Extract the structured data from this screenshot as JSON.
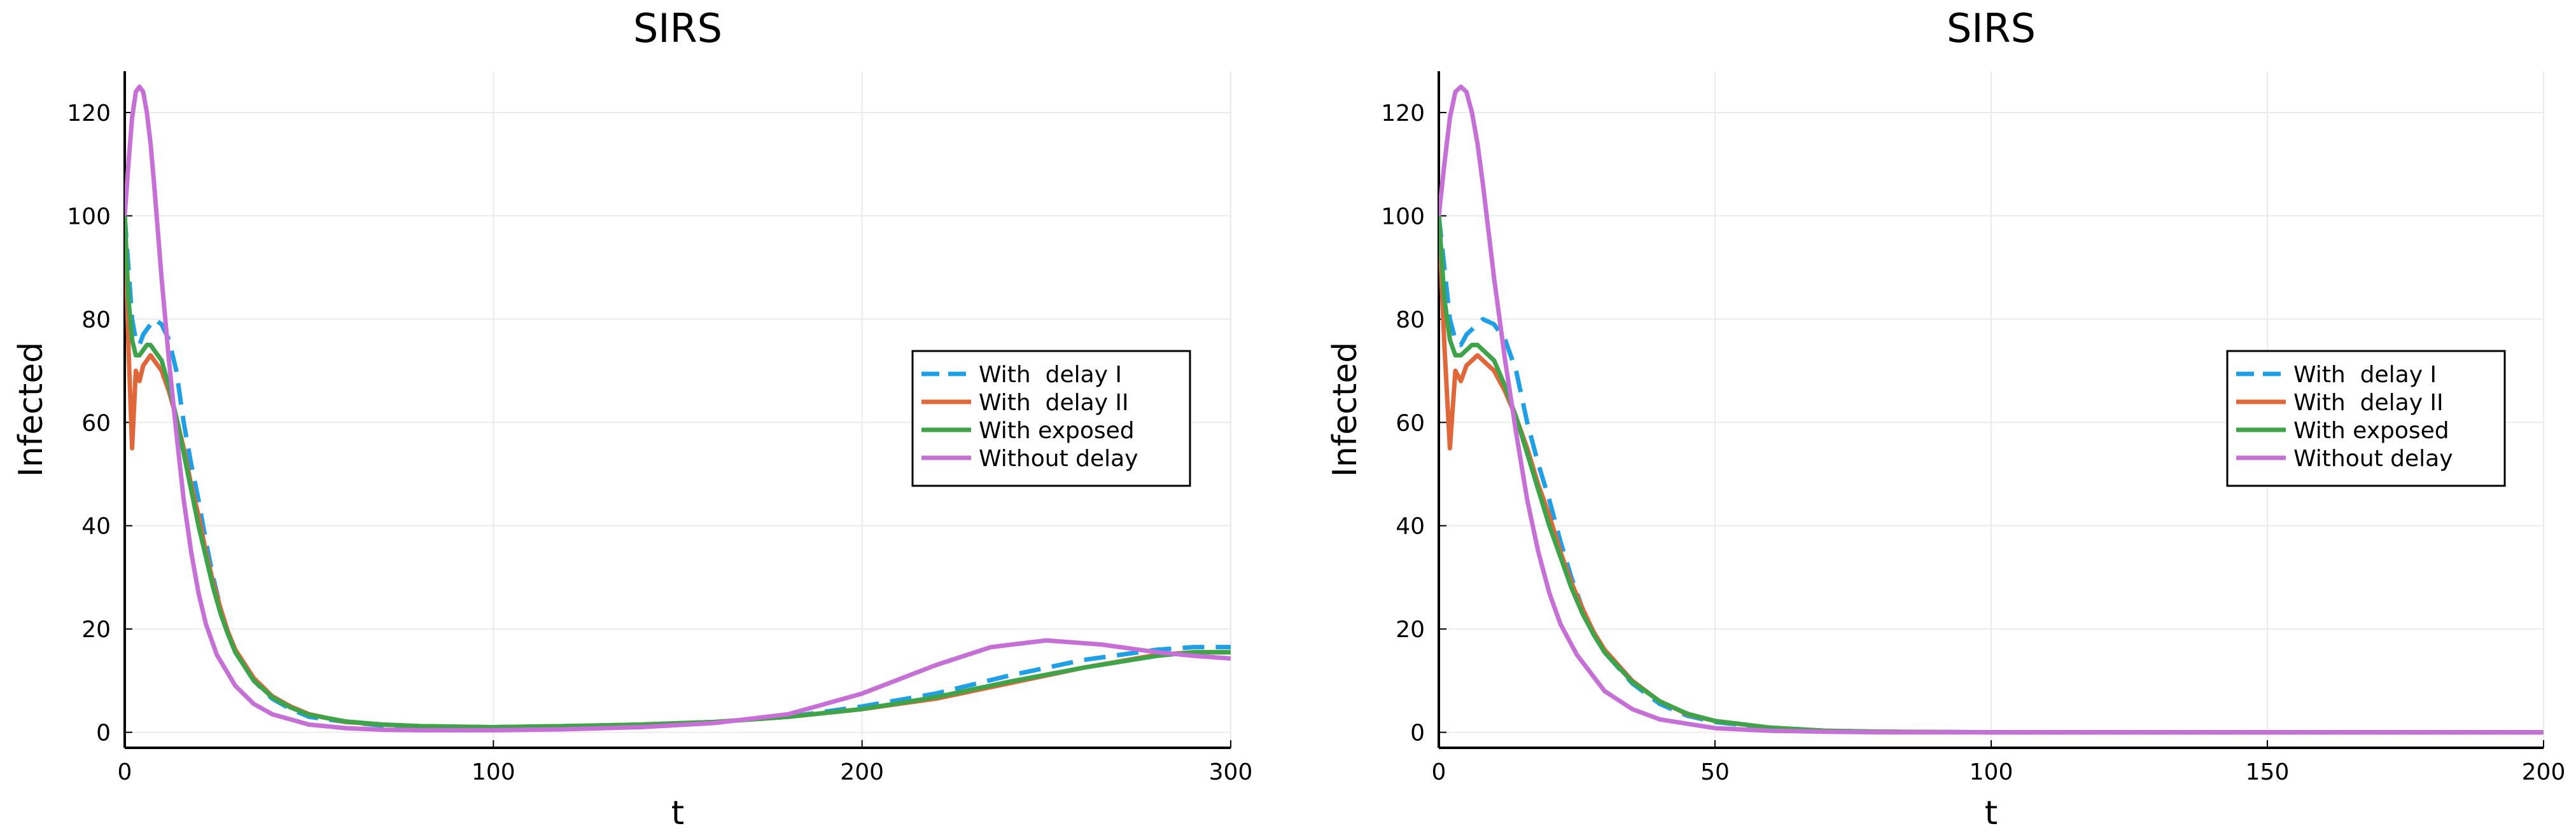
{
  "colors": {
    "delay1": "#1f9fe6",
    "delay2": "#e0673a",
    "exposed": "#3fa34a",
    "nodelay": "#c66fd6"
  },
  "chart_data": [
    {
      "type": "line",
      "title": "SIRS",
      "xlabel": "t",
      "ylabel": "Infected",
      "xlim": [
        0,
        300
      ],
      "ylim": [
        -3,
        128
      ],
      "xticks": [
        0,
        100,
        200,
        300
      ],
      "yticks": [
        0,
        20,
        40,
        60,
        80,
        100,
        120
      ],
      "grid": true,
      "legend_position": "right-middle",
      "series": [
        {
          "name": "With  delay I",
          "style": "dashed",
          "color_key": "delay1",
          "x": [
            0,
            1,
            2,
            3,
            4,
            5,
            6,
            7,
            8,
            10,
            12,
            14,
            16,
            18,
            20,
            22,
            24,
            26,
            28,
            30,
            35,
            40,
            45,
            50,
            60,
            70,
            80,
            90,
            100,
            120,
            140,
            160,
            180,
            200,
            220,
            240,
            260,
            280,
            290,
            300
          ],
          "y": [
            100,
            90,
            80,
            76,
            75,
            77,
            78,
            79,
            80,
            79,
            76,
            70,
            60,
            52,
            45,
            37,
            30,
            24,
            19,
            15.5,
            10,
            6.5,
            4.5,
            3,
            2,
            1.3,
            1.1,
            1,
            1,
            1.2,
            1.5,
            2,
            3,
            5,
            7.5,
            11,
            14,
            16,
            16.5,
            16.5
          ]
        },
        {
          "name": "With  delay II",
          "style": "solid",
          "color_key": "delay2",
          "x": [
            0,
            1,
            2,
            3,
            4,
            5,
            6,
            7,
            8,
            10,
            12,
            14,
            16,
            18,
            20,
            22,
            24,
            26,
            28,
            30,
            35,
            40,
            45,
            50,
            60,
            70,
            80,
            90,
            100,
            120,
            140,
            160,
            180,
            200,
            220,
            240,
            260,
            280,
            290,
            300
          ],
          "y": [
            100,
            75,
            55,
            70,
            68,
            71,
            72,
            73,
            72,
            70,
            66,
            61,
            55,
            48,
            42,
            35,
            29,
            24,
            19.5,
            16,
            10.5,
            7,
            5,
            3.5,
            2,
            1.5,
            1.2,
            1.1,
            1,
            1.2,
            1.5,
            2,
            3,
            4.5,
            6.5,
            9.5,
            12.5,
            15,
            15.5,
            15.5
          ]
        },
        {
          "name": "With exposed",
          "style": "solid",
          "color_key": "exposed",
          "x": [
            0,
            1,
            2,
            3,
            4,
            5,
            6,
            7,
            8,
            10,
            12,
            14,
            16,
            18,
            20,
            22,
            24,
            26,
            28,
            30,
            35,
            40,
            45,
            50,
            60,
            70,
            80,
            90,
            100,
            120,
            140,
            160,
            180,
            200,
            220,
            240,
            260,
            280,
            290,
            300
          ],
          "y": [
            100,
            84,
            76,
            73,
            73,
            74,
            75,
            75,
            74,
            72,
            67,
            61,
            54,
            47,
            40,
            34,
            28,
            23,
            19,
            15.5,
            10,
            6.8,
            4.8,
            3.4,
            2.1,
            1.5,
            1.2,
            1.1,
            1,
            1.2,
            1.5,
            2,
            3,
            4.5,
            6.8,
            9.8,
            12.5,
            14.8,
            15.5,
            15.5
          ]
        },
        {
          "name": "Without delay",
          "style": "solid",
          "color_key": "nodelay",
          "x": [
            0,
            1,
            2,
            3,
            4,
            5,
            6,
            7,
            8,
            9,
            10,
            12,
            14,
            16,
            18,
            20,
            22,
            25,
            30,
            35,
            40,
            50,
            60,
            70,
            80,
            100,
            120,
            140,
            160,
            180,
            200,
            220,
            235,
            250,
            265,
            280,
            290,
            300
          ],
          "y": [
            100,
            110,
            119,
            124,
            125,
            124,
            120,
            114,
            106,
            97,
            88,
            72,
            58,
            45,
            35,
            27,
            21,
            15,
            9,
            5.5,
            3.5,
            1.5,
            0.8,
            0.5,
            0.4,
            0.4,
            0.6,
            1,
            1.8,
            3.5,
            7.5,
            13,
            16.5,
            17.8,
            17,
            15.5,
            14.8,
            14.3
          ]
        }
      ]
    },
    {
      "type": "line",
      "title": "SIRS",
      "xlabel": "t",
      "ylabel": "Infected",
      "xlim": [
        0,
        200
      ],
      "ylim": [
        -3,
        128
      ],
      "xticks": [
        0,
        50,
        100,
        150,
        200
      ],
      "yticks": [
        0,
        20,
        40,
        60,
        80,
        100,
        120
      ],
      "grid": true,
      "legend_position": "right-middle",
      "series": [
        {
          "name": "With  delay I",
          "style": "dashed",
          "color_key": "delay1",
          "x": [
            0,
            1,
            2,
            3,
            4,
            5,
            6,
            7,
            8,
            10,
            12,
            14,
            16,
            18,
            20,
            22,
            24,
            26,
            28,
            30,
            35,
            40,
            45,
            50,
            60,
            70,
            80,
            100,
            150,
            200
          ],
          "y": [
            100,
            90,
            80,
            76,
            75,
            77,
            78,
            79,
            80,
            79,
            76,
            70,
            60,
            52,
            45,
            37,
            30,
            24,
            19,
            15.5,
            9.5,
            5.5,
            3.2,
            2,
            0.8,
            0.3,
            0.1,
            0,
            0,
            0
          ]
        },
        {
          "name": "With  delay II",
          "style": "solid",
          "color_key": "delay2",
          "x": [
            0,
            1,
            2,
            3,
            4,
            5,
            6,
            7,
            8,
            10,
            12,
            14,
            16,
            18,
            20,
            22,
            24,
            26,
            28,
            30,
            35,
            40,
            45,
            50,
            60,
            70,
            80,
            100,
            150,
            200
          ],
          "y": [
            100,
            75,
            55,
            70,
            68,
            71,
            72,
            73,
            72,
            70,
            66,
            61,
            55,
            48,
            42,
            35,
            29,
            24,
            19.5,
            16,
            10,
            6,
            3.5,
            2.2,
            0.9,
            0.3,
            0.1,
            0,
            0,
            0
          ]
        },
        {
          "name": "With exposed",
          "style": "solid",
          "color_key": "exposed",
          "x": [
            0,
            1,
            2,
            3,
            4,
            5,
            6,
            7,
            8,
            10,
            12,
            14,
            16,
            18,
            20,
            22,
            24,
            26,
            28,
            30,
            35,
            40,
            45,
            50,
            60,
            70,
            80,
            100,
            150,
            200
          ],
          "y": [
            100,
            84,
            76,
            73,
            73,
            74,
            75,
            75,
            74,
            72,
            67,
            61,
            54,
            47,
            40,
            34,
            28,
            23,
            19,
            15.5,
            9.8,
            6,
            3.6,
            2.2,
            0.9,
            0.3,
            0.1,
            0,
            0,
            0
          ]
        },
        {
          "name": "Without delay",
          "style": "solid",
          "color_key": "nodelay",
          "x": [
            0,
            1,
            2,
            3,
            4,
            5,
            6,
            7,
            8,
            9,
            10,
            12,
            14,
            16,
            18,
            20,
            22,
            25,
            30,
            35,
            40,
            50,
            60,
            70,
            80,
            100,
            150,
            200
          ],
          "y": [
            100,
            110,
            119,
            124,
            125,
            124,
            120,
            114,
            106,
            97,
            88,
            72,
            58,
            45,
            35,
            27,
            21,
            15,
            8,
            4.5,
            2.5,
            0.8,
            0.3,
            0.1,
            0,
            0,
            0,
            0
          ]
        }
      ]
    }
  ]
}
